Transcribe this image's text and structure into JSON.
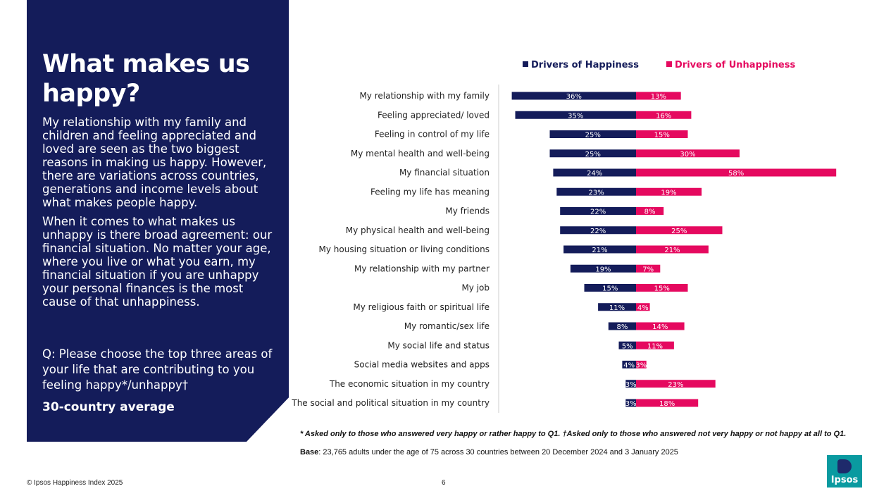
{
  "colors": {
    "navy": "#141c5a",
    "pink": "#e5095f",
    "logo_teal": "#0a9aa0"
  },
  "panel": {
    "title": "What makes us happy?",
    "paragraph1": "My relationship with my family and children and feeling appreciated and loved are seen as the two biggest reasons in making us happy. However, there are variations across countries, generations and income levels about what makes people happy.",
    "paragraph2": "When it comes to what makes us unhappy is there broad agreement: our financial situation. No matter your age, where you live or what you earn, my financial situation if you are unhappy your personal finances is the most cause of that unhappiness.",
    "question": "Q: Please choose the top three areas of your life that are contributing to you feeling happy*/unhappy†",
    "average_label": "30-country average"
  },
  "chart_data": {
    "type": "bar",
    "orientation": "horizontal-diverging",
    "title": "",
    "legend": [
      "Drivers of Happiness",
      "Drivers of Unhappiness"
    ],
    "legend_position": "top",
    "value_suffix": "%",
    "categories": [
      "My relationship with my family",
      "Feeling appreciated/ loved",
      "Feeling in control of my life",
      "My mental health and well-being",
      "My financial situation",
      "Feeling my life has meaning",
      "My friends",
      "My physical health and well-being",
      "My housing situation or living conditions",
      "My relationship with my partner",
      "My job",
      "My religious faith or spiritual life",
      "My romantic/sex life",
      "My social life and status",
      "Social media websites and apps",
      "The economic situation in my country",
      "The social and political situation in my country"
    ],
    "series": [
      {
        "name": "Drivers of Happiness",
        "values": [
          36,
          35,
          25,
          25,
          24,
          23,
          22,
          22,
          21,
          19,
          15,
          11,
          8,
          5,
          4,
          3,
          3
        ]
      },
      {
        "name": "Drivers of Unhappiness",
        "values": [
          13,
          16,
          15,
          30,
          58,
          19,
          8,
          25,
          21,
          7,
          15,
          4,
          14,
          11,
          3,
          23,
          18
        ]
      }
    ],
    "xlim": [
      -40,
      60
    ]
  },
  "notes": {
    "footnote": "* Asked only to those who answered very happy or rather happy to Q1. †Asked only to those who answered not very happy or not happy at all to Q1.",
    "base_label": "Base",
    "base_text": ": 23,765 adults under the age of 75 across 30 countries between  20 December 2024 and 3 January 2025"
  },
  "footer": {
    "copyright": "© Ipsos Happiness Index 2025",
    "page_number": "6",
    "logo_text": "Ipsos"
  }
}
